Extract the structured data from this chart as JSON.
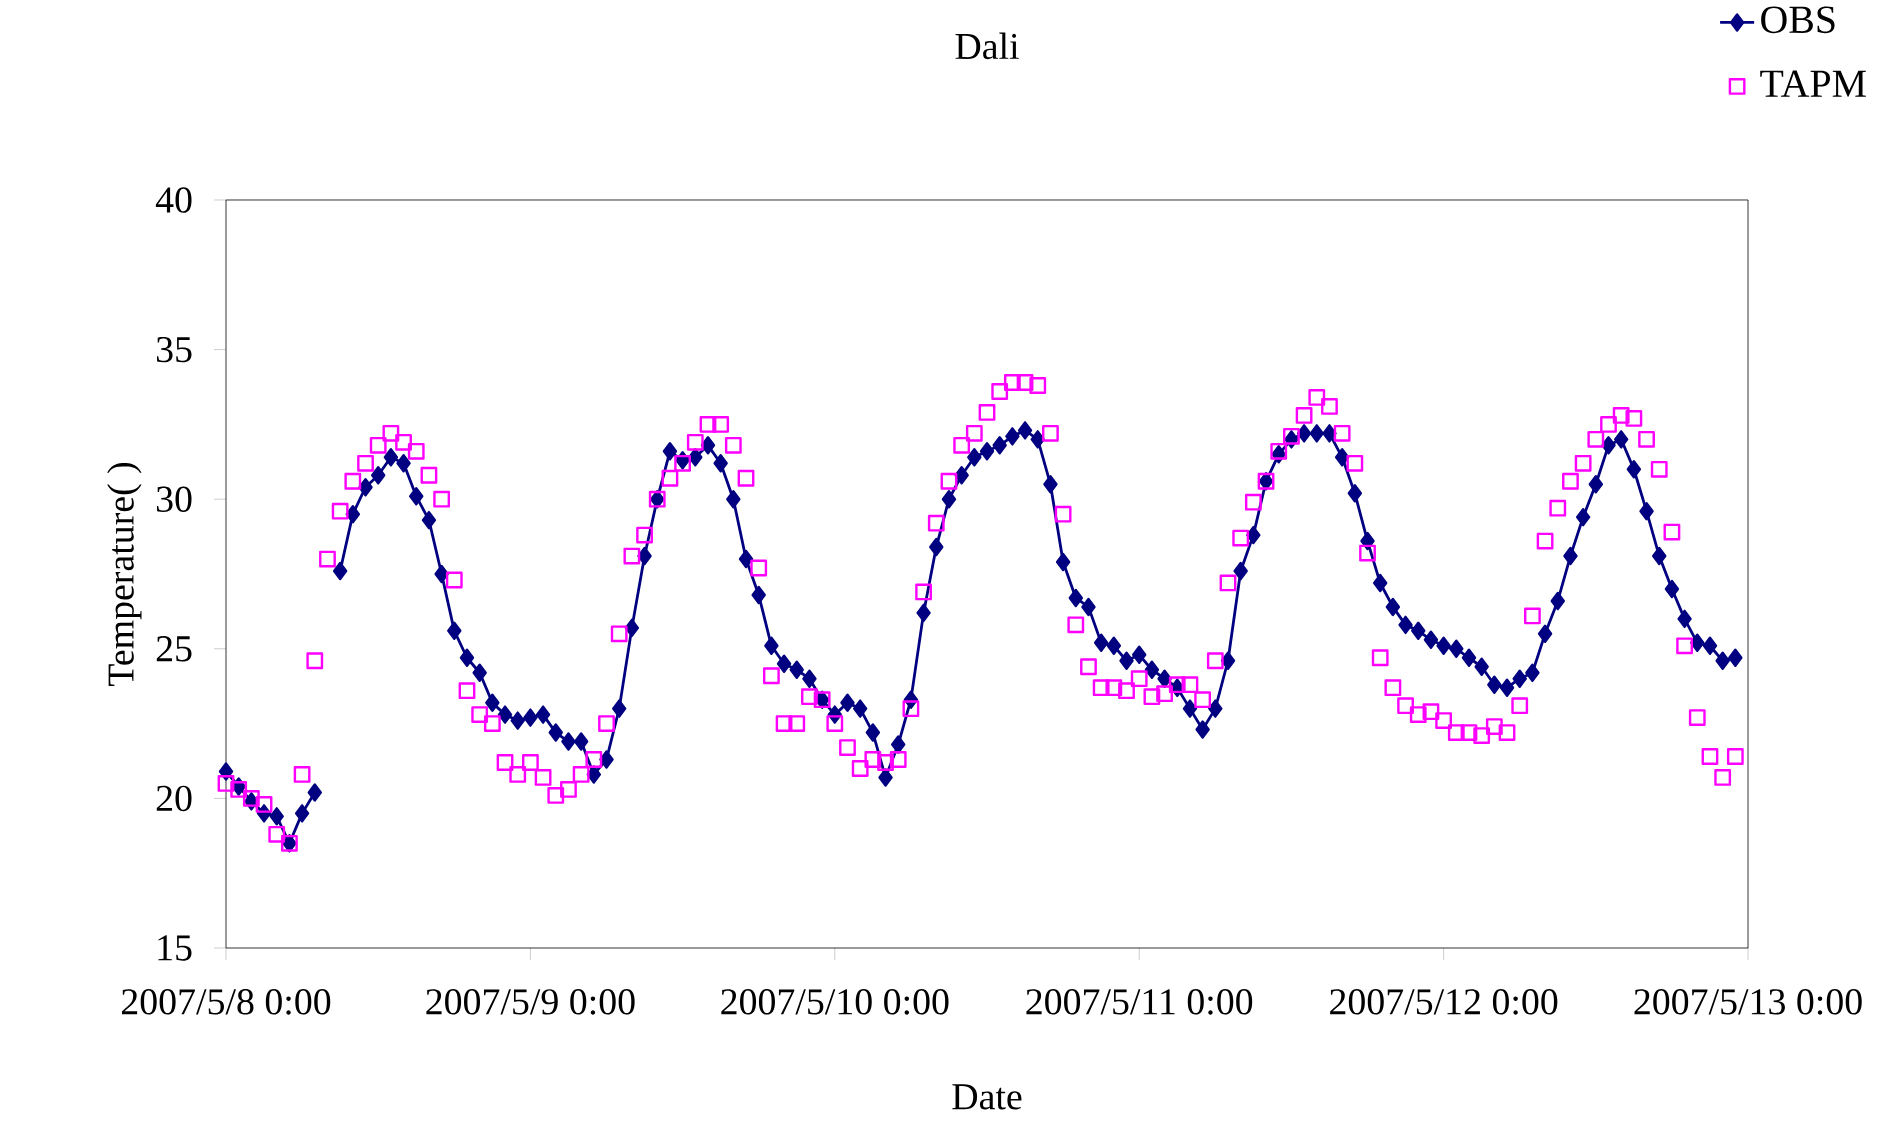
{
  "chart_data": {
    "type": "line",
    "title": "Dali",
    "xlabel": "Date",
    "ylabel": "Temperature( )",
    "x": [
      "2007-05-08T00:00",
      "2007-05-08T01:00",
      "2007-05-08T02:00",
      "2007-05-08T03:00",
      "2007-05-08T04:00",
      "2007-05-08T05:00",
      "2007-05-08T06:00",
      "2007-05-08T07:00",
      "2007-05-08T08:00",
      "2007-05-08T09:00",
      "2007-05-08T10:00",
      "2007-05-08T11:00",
      "2007-05-08T12:00",
      "2007-05-08T13:00",
      "2007-05-08T14:00",
      "2007-05-08T15:00",
      "2007-05-08T16:00",
      "2007-05-08T17:00",
      "2007-05-08T18:00",
      "2007-05-08T19:00",
      "2007-05-08T20:00",
      "2007-05-08T21:00",
      "2007-05-08T22:00",
      "2007-05-08T23:00",
      "2007-05-09T00:00",
      "2007-05-09T01:00",
      "2007-05-09T02:00",
      "2007-05-09T03:00",
      "2007-05-09T04:00",
      "2007-05-09T05:00",
      "2007-05-09T06:00",
      "2007-05-09T07:00",
      "2007-05-09T08:00",
      "2007-05-09T09:00",
      "2007-05-09T10:00",
      "2007-05-09T11:00",
      "2007-05-09T12:00",
      "2007-05-09T13:00",
      "2007-05-09T14:00",
      "2007-05-09T15:00",
      "2007-05-09T16:00",
      "2007-05-09T17:00",
      "2007-05-09T18:00",
      "2007-05-09T19:00",
      "2007-05-09T20:00",
      "2007-05-09T21:00",
      "2007-05-09T22:00",
      "2007-05-09T23:00",
      "2007-05-10T00:00",
      "2007-05-10T01:00",
      "2007-05-10T02:00",
      "2007-05-10T03:00",
      "2007-05-10T04:00",
      "2007-05-10T05:00",
      "2007-05-10T06:00",
      "2007-05-10T07:00",
      "2007-05-10T08:00",
      "2007-05-10T09:00",
      "2007-05-10T10:00",
      "2007-05-10T11:00",
      "2007-05-10T12:00",
      "2007-05-10T13:00",
      "2007-05-10T14:00",
      "2007-05-10T15:00",
      "2007-05-10T16:00",
      "2007-05-10T17:00",
      "2007-05-10T18:00",
      "2007-05-10T19:00",
      "2007-05-10T20:00",
      "2007-05-10T21:00",
      "2007-05-10T22:00",
      "2007-05-10T23:00",
      "2007-05-11T00:00",
      "2007-05-11T01:00",
      "2007-05-11T02:00",
      "2007-05-11T03:00",
      "2007-05-11T04:00",
      "2007-05-11T05:00",
      "2007-05-11T06:00",
      "2007-05-11T07:00",
      "2007-05-11T08:00",
      "2007-05-11T09:00",
      "2007-05-11T10:00",
      "2007-05-11T11:00",
      "2007-05-11T12:00",
      "2007-05-11T13:00",
      "2007-05-11T14:00",
      "2007-05-11T15:00",
      "2007-05-11T16:00",
      "2007-05-11T17:00",
      "2007-05-11T18:00",
      "2007-05-11T19:00",
      "2007-05-11T20:00",
      "2007-05-11T21:00",
      "2007-05-11T22:00",
      "2007-05-11T23:00",
      "2007-05-12T00:00",
      "2007-05-12T01:00",
      "2007-05-12T02:00",
      "2007-05-12T03:00",
      "2007-05-12T04:00",
      "2007-05-12T05:00",
      "2007-05-12T06:00",
      "2007-05-12T07:00",
      "2007-05-12T08:00",
      "2007-05-12T09:00",
      "2007-05-12T10:00",
      "2007-05-12T11:00",
      "2007-05-12T12:00",
      "2007-05-12T13:00",
      "2007-05-12T14:00",
      "2007-05-12T15:00",
      "2007-05-12T16:00",
      "2007-05-12T17:00",
      "2007-05-12T18:00",
      "2007-05-12T19:00",
      "2007-05-12T20:00",
      "2007-05-12T21:00",
      "2007-05-12T22:00",
      "2007-05-12T23:00"
    ],
    "series": [
      {
        "name": "OBS",
        "color": "#000080",
        "marker": "diamond",
        "line_style": "solid",
        "values": [
          20.9,
          20.4,
          19.9,
          19.5,
          19.4,
          18.5,
          19.5,
          20.2,
          null,
          27.6,
          29.5,
          30.4,
          30.8,
          31.4,
          31.2,
          30.1,
          29.3,
          27.5,
          25.6,
          24.7,
          24.2,
          23.2,
          22.8,
          22.6,
          22.7,
          22.8,
          22.2,
          21.9,
          21.9,
          20.8,
          21.3,
          23.0,
          25.7,
          28.1,
          30.0,
          31.6,
          31.3,
          31.4,
          31.8,
          31.2,
          30.0,
          28.0,
          26.8,
          25.1,
          24.5,
          24.3,
          24.0,
          23.3,
          22.8,
          23.2,
          23.0,
          22.2,
          20.7,
          21.8,
          23.3,
          26.2,
          28.4,
          30.0,
          30.8,
          31.4,
          31.6,
          31.8,
          32.1,
          32.3,
          32.0,
          30.5,
          27.9,
          26.7,
          26.4,
          25.2,
          25.1,
          24.6,
          24.8,
          24.3,
          24.0,
          23.7,
          23.0,
          22.3,
          23.0,
          24.6,
          27.6,
          28.8,
          30.6,
          31.5,
          32.0,
          32.2,
          32.2,
          32.2,
          31.4,
          30.2,
          28.6,
          27.2,
          26.4,
          25.8,
          25.6,
          25.3,
          25.1,
          25.0,
          24.7,
          24.4,
          23.8,
          23.7,
          24.0,
          24.2,
          25.5,
          26.6,
          28.1,
          29.4,
          30.5,
          31.8,
          32.0,
          31.0,
          29.6,
          28.1,
          27.0,
          26.0,
          25.2,
          25.1,
          24.6,
          24.7
        ]
      },
      {
        "name": "TAPM",
        "type": "scatter",
        "color": "#ff00ff",
        "marker": "square",
        "values": [
          20.5,
          20.3,
          20.0,
          19.8,
          18.8,
          18.5,
          20.8,
          24.6,
          28.0,
          29.6,
          30.6,
          31.2,
          31.8,
          32.2,
          31.9,
          31.6,
          30.8,
          30.0,
          27.3,
          23.6,
          22.8,
          22.5,
          21.2,
          20.8,
          21.2,
          20.7,
          20.1,
          20.3,
          20.8,
          21.3,
          22.5,
          25.5,
          28.1,
          28.8,
          30.0,
          30.7,
          31.2,
          31.9,
          32.5,
          32.5,
          31.8,
          30.7,
          27.7,
          24.1,
          22.5,
          22.5,
          23.4,
          23.3,
          22.5,
          21.7,
          21.0,
          21.3,
          21.2,
          21.3,
          23.0,
          26.9,
          29.2,
          30.6,
          31.8,
          32.2,
          32.9,
          33.6,
          33.9,
          33.9,
          33.8,
          32.2,
          29.5,
          25.8,
          24.4,
          23.7,
          23.7,
          23.6,
          24.0,
          23.4,
          23.5,
          23.8,
          23.8,
          23.3,
          24.6,
          27.2,
          28.7,
          29.9,
          30.6,
          31.6,
          32.1,
          32.8,
          33.4,
          33.1,
          32.2,
          31.2,
          28.2,
          24.7,
          23.7,
          23.1,
          22.8,
          22.9,
          22.6,
          22.2,
          22.2,
          22.1,
          22.4,
          22.2,
          23.1,
          26.1,
          28.6,
          29.7,
          30.6,
          31.2,
          32.0,
          32.5,
          32.8,
          32.7,
          32.0,
          31.0,
          28.9,
          25.1,
          22.7,
          21.4,
          20.7,
          21.4
        ]
      }
    ],
    "xlim": [
      "2007-05-08T00:00",
      "2007-05-13T00:00"
    ],
    "xticks": [
      {
        "value": "2007-05-08T00:00",
        "label": "2007/5/8 0:00"
      },
      {
        "value": "2007-05-09T00:00",
        "label": "2007/5/9 0:00"
      },
      {
        "value": "2007-05-10T00:00",
        "label": "2007/5/10 0:00"
      },
      {
        "value": "2007-05-11T00:00",
        "label": "2007/5/11 0:00"
      },
      {
        "value": "2007-05-12T00:00",
        "label": "2007/5/12 0:00"
      },
      {
        "value": "2007-05-13T00:00",
        "label": "2007/5/13 0:00"
      }
    ],
    "ylim": [
      15,
      40
    ],
    "yticks": [
      15,
      20,
      25,
      30,
      35,
      40
    ],
    "legend": "top right",
    "grid": false
  }
}
